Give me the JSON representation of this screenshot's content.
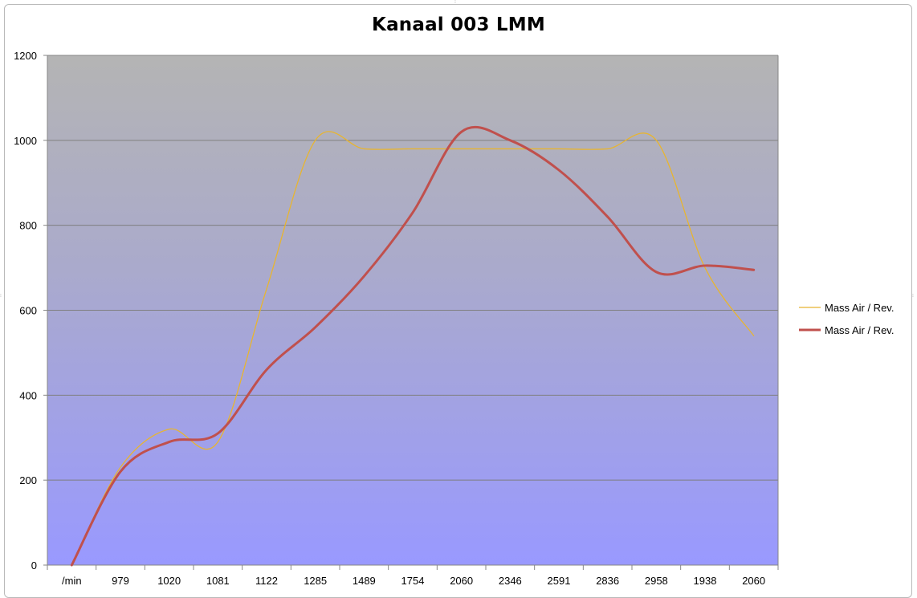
{
  "chart_data": {
    "type": "line",
    "title": "Kanaal 003 LMM",
    "xlabel": "",
    "ylabel": "",
    "categories": [
      "/min",
      "979",
      "1020",
      "1081",
      "1122",
      "1285",
      "1489",
      "1754",
      "2060",
      "2346",
      "2591",
      "2836",
      "2958",
      "1938",
      "2060"
    ],
    "ylim": [
      0,
      1200
    ],
    "yticks": [
      0,
      200,
      400,
      600,
      800,
      1000,
      1200
    ],
    "grid": true,
    "legend_position": "right",
    "series": [
      {
        "name": "Mass Air / Rev.",
        "color": "#e8b530",
        "line_width": "thin",
        "values": [
          0,
          230,
          320,
          290,
          650,
          1000,
          980,
          980,
          980,
          980,
          980,
          980,
          1000,
          700,
          540
        ]
      },
      {
        "name": "Mass Air / Rev.",
        "color": "#c0504d",
        "line_width": "thick",
        "values": [
          0,
          220,
          290,
          310,
          460,
          560,
          680,
          830,
          1020,
          1000,
          930,
          820,
          690,
          705,
          695
        ]
      }
    ],
    "plot_background": {
      "top_color": "#b4b4b4",
      "bottom_color": "#9999ff"
    }
  }
}
